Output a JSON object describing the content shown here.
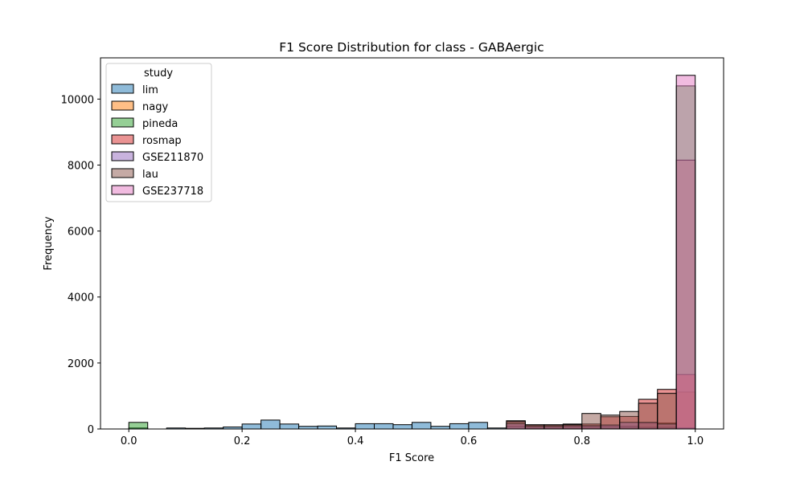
{
  "chart_data": {
    "type": "bar",
    "title": "F1 Score Distribution for class - GABAergic",
    "xlabel": "F1 Score",
    "ylabel": "Frequency",
    "xlim": [
      -0.05,
      1.05
    ],
    "ylim": [
      0,
      11250
    ],
    "xticks": [
      0.0,
      0.2,
      0.4,
      0.6,
      0.8,
      1.0
    ],
    "xtick_labels": [
      "0.0",
      "0.2",
      "0.4",
      "0.6",
      "0.8",
      "1.0"
    ],
    "yticks": [
      0,
      2000,
      4000,
      6000,
      8000,
      10000
    ],
    "ytick_labels": [
      "0",
      "2000",
      "4000",
      "6000",
      "8000",
      "10000"
    ],
    "bin_start": 0.0,
    "bin_width": 0.03333,
    "legend": {
      "title": "study",
      "position": "upper left"
    },
    "series": [
      {
        "name": "lim",
        "color": "#1f77b4",
        "values": [
          30,
          0,
          30,
          20,
          30,
          60,
          150,
          270,
          150,
          80,
          90,
          30,
          160,
          160,
          130,
          200,
          80,
          160,
          200,
          30,
          80,
          70,
          70,
          70,
          70,
          80,
          80,
          60,
          60,
          20
        ]
      },
      {
        "name": "nagy",
        "color": "#ff7f0e",
        "values": [
          0,
          0,
          0,
          0,
          0,
          0,
          0,
          0,
          0,
          0,
          0,
          0,
          0,
          0,
          0,
          0,
          0,
          0,
          0,
          0,
          0,
          0,
          0,
          0,
          0,
          0,
          0,
          180,
          180,
          1120
        ]
      },
      {
        "name": "pineda",
        "color": "#2ca02c",
        "values": [
          200,
          0,
          0,
          0,
          0,
          0,
          0,
          0,
          0,
          0,
          0,
          0,
          0,
          0,
          0,
          0,
          0,
          0,
          0,
          0,
          0,
          20,
          20,
          20,
          20,
          20,
          30,
          30,
          30,
          10400
        ]
      },
      {
        "name": "rosmap",
        "color": "#d62728",
        "values": [
          0,
          0,
          0,
          0,
          0,
          0,
          0,
          0,
          0,
          0,
          0,
          0,
          0,
          0,
          0,
          0,
          0,
          0,
          0,
          0,
          250,
          130,
          130,
          150,
          150,
          370,
          380,
          900,
          1200,
          1650
        ]
      },
      {
        "name": "GSE211870",
        "color": "#9467bd",
        "values": [
          0,
          0,
          0,
          0,
          0,
          0,
          0,
          0,
          0,
          0,
          0,
          0,
          0,
          0,
          0,
          0,
          0,
          0,
          0,
          0,
          160,
          80,
          80,
          100,
          100,
          120,
          200,
          200,
          150,
          30
        ]
      },
      {
        "name": "lau",
        "color": "#8c564b",
        "values": [
          0,
          0,
          0,
          0,
          0,
          0,
          0,
          0,
          0,
          0,
          0,
          0,
          0,
          0,
          0,
          0,
          0,
          0,
          0,
          0,
          220,
          120,
          120,
          130,
          470,
          420,
          530,
          780,
          1080,
          8150
        ]
      },
      {
        "name": "GSE237718",
        "color": "#e377c2",
        "values": [
          0,
          0,
          0,
          0,
          0,
          0,
          0,
          0,
          0,
          0,
          0,
          0,
          0,
          0,
          0,
          0,
          0,
          0,
          0,
          0,
          0,
          0,
          0,
          0,
          0,
          0,
          0,
          0,
          0,
          10720
        ]
      }
    ]
  }
}
